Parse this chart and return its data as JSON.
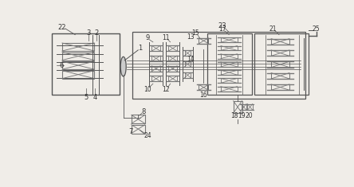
{
  "bg_color": "#f0ede8",
  "line_color": "#555555",
  "dark_gray": "#777777",
  "figsize": [
    4.44,
    2.35
  ],
  "dpi": 100,
  "xlim": [
    0,
    444
  ],
  "ylim": [
    0,
    235
  ]
}
